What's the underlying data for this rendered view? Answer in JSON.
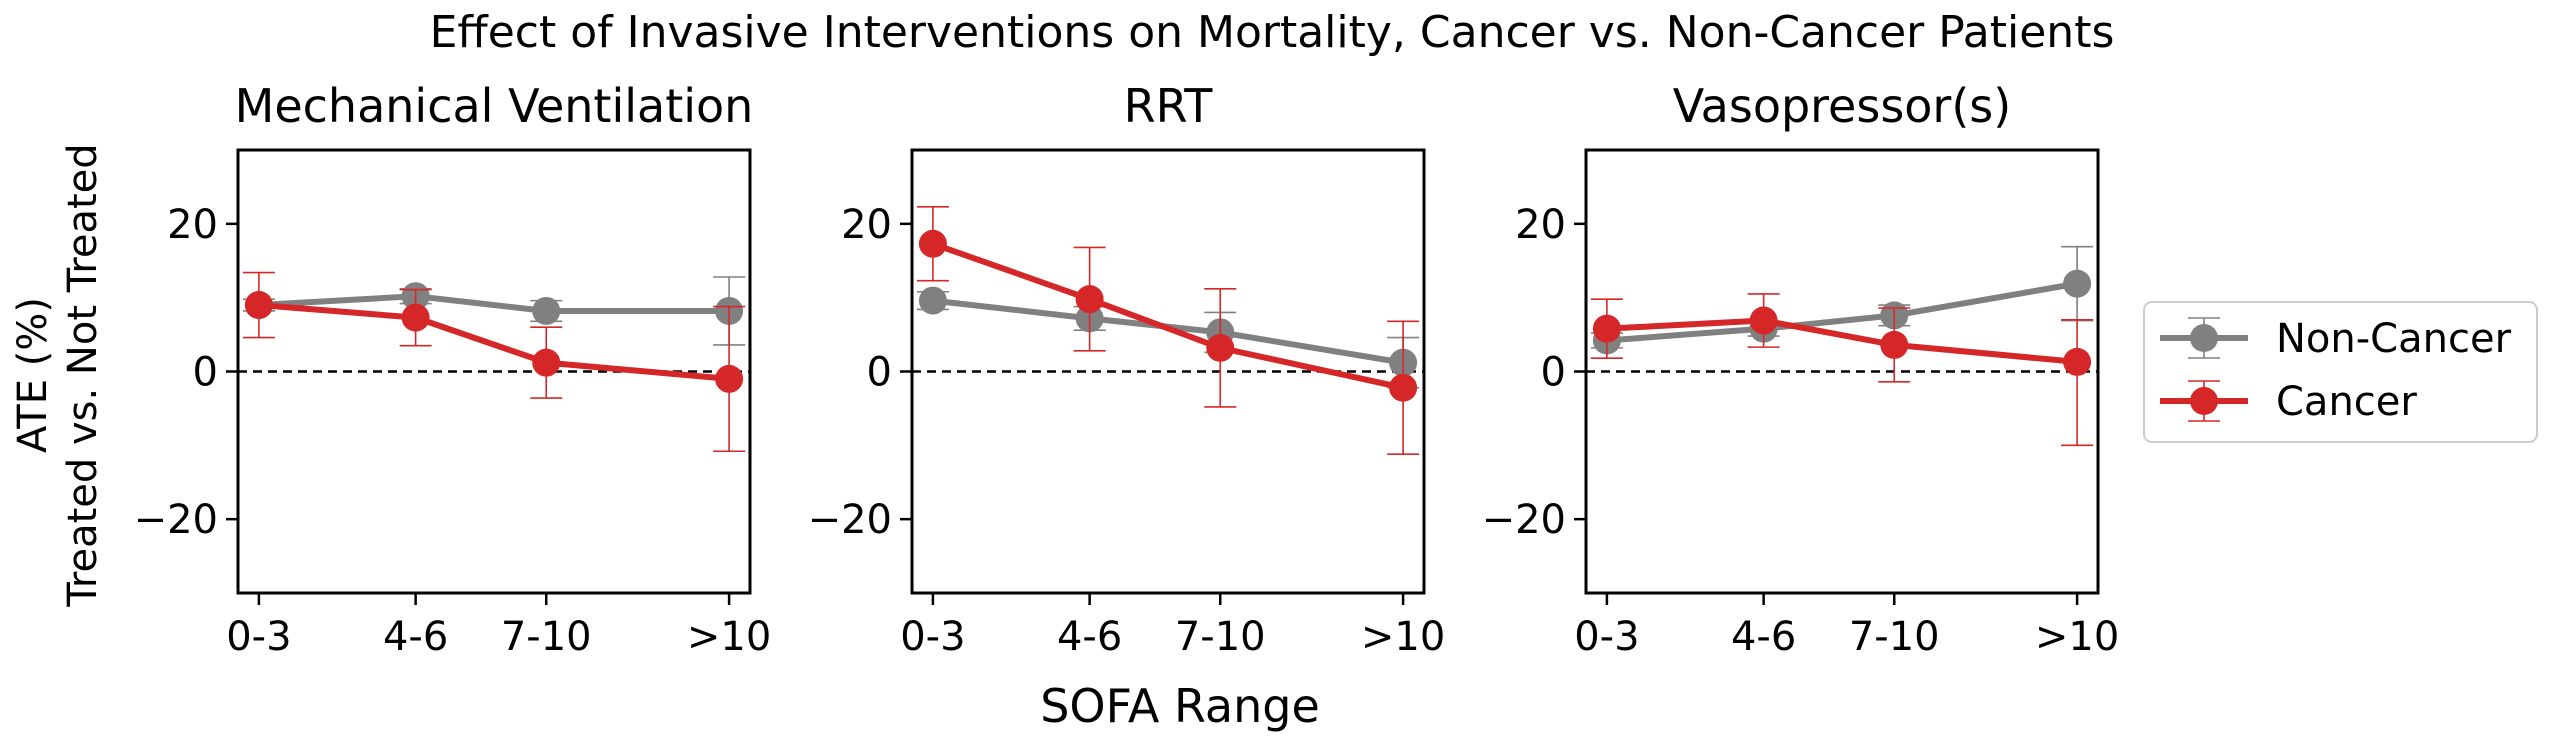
{
  "chart_data": {
    "type": "line",
    "title": "Effect of Invasive Interventions on Mortality, Cancer vs. Non-Cancer Patients",
    "xlabel": "SOFA Range",
    "ylabel_line1": "ATE (%)",
    "ylabel_line2": "Treated vs. Not Treated",
    "categories": [
      "0-3",
      "4-6",
      "7-10",
      ">10"
    ],
    "x_positions": [
      0,
      3,
      5.5,
      9
    ],
    "xlim": [
      -0.4,
      9.4
    ],
    "ylim": [
      -30,
      30
    ],
    "yticks": [
      20,
      0,
      -20
    ],
    "ytick_labels": [
      "20",
      "0",
      "−20"
    ],
    "zero_line": "dashed",
    "grid": false,
    "legend": {
      "placement": "right",
      "entries": [
        {
          "name": "Non-Cancer",
          "color": "#808080"
        },
        {
          "name": "Cancer",
          "color": "#d62728"
        }
      ]
    },
    "panels": [
      {
        "title": "Mechanical Ventilation",
        "series": [
          {
            "name": "Non-Cancer",
            "color": "#808080",
            "values": [
              9.0,
              10.2,
              8.2,
              8.2
            ],
            "err_low": [
              8.2,
              9.2,
              6.8,
              3.6
            ],
            "err_high": [
              9.8,
              11.2,
              9.6,
              12.8
            ]
          },
          {
            "name": "Cancer",
            "color": "#d62728",
            "values": [
              9.0,
              7.3,
              1.2,
              -1.0
            ],
            "err_low": [
              4.6,
              3.5,
              -3.6,
              -10.8
            ],
            "err_high": [
              13.4,
              11.1,
              6.0,
              8.8
            ]
          }
        ]
      },
      {
        "title": "RRT",
        "series": [
          {
            "name": "Non-Cancer",
            "color": "#808080",
            "values": [
              9.6,
              7.2,
              5.3,
              1.2
            ],
            "err_low": [
              8.4,
              5.6,
              2.6,
              -2.2
            ],
            "err_high": [
              10.8,
              8.8,
              8.0,
              4.6
            ]
          },
          {
            "name": "Cancer",
            "color": "#d62728",
            "values": [
              17.3,
              9.8,
              3.2,
              -2.2
            ],
            "err_low": [
              12.3,
              2.8,
              -4.8,
              -11.2
            ],
            "err_high": [
              22.3,
              16.8,
              11.2,
              6.8
            ]
          }
        ]
      },
      {
        "title": "Vasopressor(s)",
        "series": [
          {
            "name": "Non-Cancer",
            "color": "#808080",
            "values": [
              4.2,
              5.8,
              7.6,
              11.9
            ],
            "err_low": [
              3.2,
              4.8,
              6.2,
              6.9
            ],
            "err_high": [
              5.2,
              6.8,
              9.0,
              16.9
            ]
          },
          {
            "name": "Cancer",
            "color": "#d62728",
            "values": [
              5.8,
              6.9,
              3.6,
              1.3
            ],
            "err_low": [
              1.8,
              3.3,
              -1.4,
              -10.0
            ],
            "err_high": [
              9.8,
              10.5,
              8.6,
              7.0
            ]
          }
        ]
      }
    ]
  }
}
